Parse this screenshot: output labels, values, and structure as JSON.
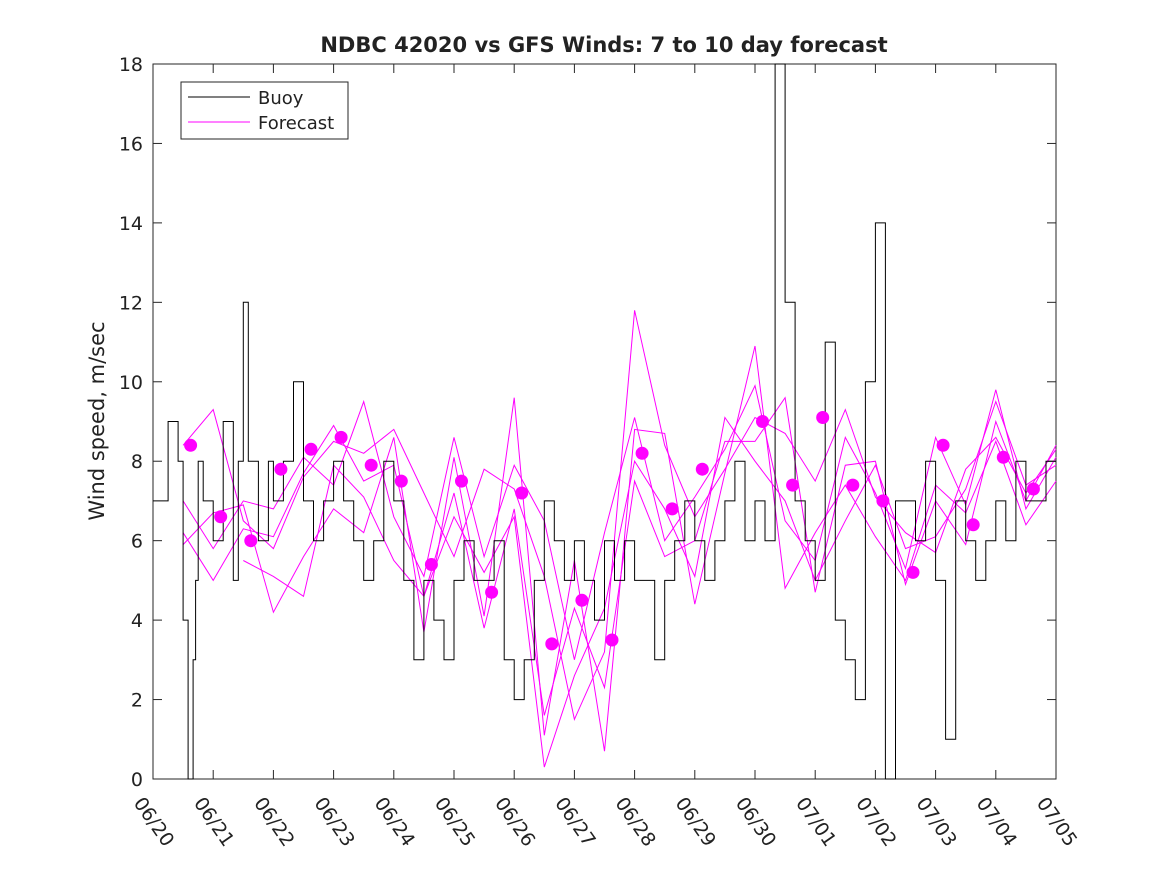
{
  "chart_data": {
    "type": "line",
    "title": "NDBC 42020 vs GFS Winds: 7 to 10 day forecast",
    "xlabel": "",
    "ylabel": "Wind speed, m/sec",
    "x_axis": "date",
    "xlim": [
      "06/20",
      "07/05"
    ],
    "ylim": [
      0,
      18
    ],
    "x_ticks": [
      "06/20",
      "06/21",
      "06/22",
      "06/23",
      "06/24",
      "06/25",
      "06/26",
      "06/27",
      "06/28",
      "06/29",
      "06/30",
      "07/01",
      "07/02",
      "07/03",
      "07/04",
      "07/05"
    ],
    "y_ticks": [
      "0",
      "2",
      "4",
      "6",
      "8",
      "10",
      "12",
      "14",
      "16",
      "18"
    ],
    "grid": false,
    "legend": {
      "position": "top-left",
      "entries": [
        "Buoy",
        "Forecast"
      ]
    },
    "colors": {
      "buoy": "#000000",
      "forecast": "#ff00ff"
    },
    "series": [
      {
        "name": "Buoy",
        "style": "line",
        "x": [
          "06/20 00:00",
          "06/20 06:00",
          "06/20 10:00",
          "06/20 12:00",
          "06/20 14:00",
          "06/20 16:00",
          "06/20 17:00",
          "06/20 18:00",
          "06/20 20:00",
          "06/21 00:00",
          "06/21 04:00",
          "06/21 08:00",
          "06/21 10:00",
          "06/21 12:00",
          "06/21 14:00",
          "06/21 18:00",
          "06/21 22:00",
          "06/22 00:00",
          "06/22 04:00",
          "06/22 08:00",
          "06/22 12:00",
          "06/22 16:00",
          "06/22 20:00",
          "06/23 00:00",
          "06/23 04:00",
          "06/23 08:00",
          "06/23 12:00",
          "06/23 16:00",
          "06/23 20:00",
          "06/24 00:00",
          "06/24 04:00",
          "06/24 08:00",
          "06/24 12:00",
          "06/24 16:00",
          "06/24 20:00",
          "06/25 00:00",
          "06/25 04:00",
          "06/25 08:00",
          "06/25 12:00",
          "06/25 16:00",
          "06/25 20:00",
          "06/26 00:00",
          "06/26 04:00",
          "06/26 08:00",
          "06/26 12:00",
          "06/26 16:00",
          "06/26 20:00",
          "06/27 00:00",
          "06/27 04:00",
          "06/27 08:00",
          "06/27 12:00",
          "06/27 16:00",
          "06/27 20:00",
          "06/28 00:00",
          "06/28 04:00",
          "06/28 08:00",
          "06/28 12:00",
          "06/28 16:00",
          "06/28 20:00",
          "06/29 00:00",
          "06/29 04:00",
          "06/29 08:00",
          "06/29 12:00",
          "06/29 16:00",
          "06/29 20:00",
          "06/30 00:00",
          "06/30 04:00",
          "06/30 08:00",
          "06/30 12:00",
          "06/30 16:00",
          "06/30 20:00",
          "07/01 00:00",
          "07/01 04:00",
          "07/01 08:00",
          "07/01 12:00",
          "07/01 16:00",
          "07/01 20:00",
          "07/02 00:00",
          "07/02 04:00",
          "07/02 08:00",
          "07/02 12:00",
          "07/02 16:00",
          "07/02 20:00",
          "07/03 00:00",
          "07/03 04:00",
          "07/03 08:00",
          "07/03 12:00",
          "07/03 16:00",
          "07/03 20:00",
          "07/04 00:00",
          "07/04 04:00",
          "07/04 08:00",
          "07/04 12:00",
          "07/04 16:00",
          "07/04 20:00",
          "07/05 00:00"
        ],
        "y": [
          7,
          9,
          8,
          4,
          0,
          3,
          5,
          8,
          7,
          6,
          9,
          5,
          8,
          12,
          8,
          6,
          8,
          7,
          8,
          10,
          7,
          6,
          7,
          8,
          7,
          6,
          5,
          6,
          8,
          7,
          5,
          3,
          5,
          4,
          3,
          5,
          6,
          5,
          5,
          6,
          3,
          2,
          3,
          5,
          7,
          6,
          5,
          6,
          5,
          4,
          6,
          5,
          6,
          5,
          5,
          3,
          5,
          6,
          7,
          6,
          5,
          6,
          7,
          8,
          6,
          7,
          6,
          18,
          12,
          7,
          6,
          5,
          11,
          4,
          3,
          2,
          10,
          14,
          0,
          7,
          7,
          6,
          8,
          5,
          1,
          7,
          6,
          5,
          6,
          7,
          6,
          8,
          7,
          7,
          8,
          8
        ]
      },
      {
        "name": "Forecast",
        "style": "line",
        "x": [
          "06/20 12:00",
          "06/21 00:00",
          "06/21 12:00",
          "06/22 00:00",
          "06/22 12:00",
          "06/23 00:00",
          "06/23 12:00",
          "06/24 00:00",
          "06/24 12:00",
          "06/25 00:00",
          "06/25 12:00",
          "06/26 00:00",
          "06/26 12:00",
          "06/27 00:00",
          "06/27 12:00",
          "06/28 00:00",
          "06/28 12:00",
          "06/29 00:00",
          "06/29 12:00",
          "06/30 00:00",
          "06/30 12:00",
          "07/01 00:00",
          "07/01 12:00",
          "07/02 00:00",
          "07/02 12:00",
          "07/03 00:00",
          "07/03 12:00",
          "07/04 00:00",
          "07/04 12:00",
          "07/05 00:00"
        ],
        "runs": [
          [
            8.4,
            9.3,
            6.5,
            5.8,
            7.6,
            8.5,
            8.2,
            8.8,
            7.2,
            5.6,
            7.8,
            7.3,
            5.1,
            1.5,
            3.2,
            11.8,
            8.4,
            6.6,
            7.8,
            9.1,
            8.7,
            7.5,
            9.3,
            7.1,
            6.2,
            5.7,
            7.8,
            8.6,
            7.2,
            8.3
          ],
          [
            7.0,
            5.8,
            7.0,
            6.8,
            8.1,
            7.4,
            9.5,
            6.6,
            5.1,
            8.6,
            5.6,
            7.9,
            6.5,
            3.0,
            6.2,
            9.1,
            6.0,
            7.1,
            8.3,
            9.9,
            6.5,
            5.5,
            8.6,
            7.2,
            5.3,
            8.6,
            6.9,
            9.8,
            6.8,
            8.1
          ],
          [
            6.2,
            5.0,
            6.3,
            6.1,
            7.7,
            8.9,
            7.5,
            7.9,
            4.6,
            6.6,
            5.2,
            6.6,
            0.3,
            2.6,
            4.3,
            8.0,
            6.8,
            5.1,
            9.1,
            8.0,
            7.0,
            5.0,
            6.5,
            7.9,
            5.8,
            6.1,
            7.3,
            9.5,
            7.4,
            7.9
          ],
          [
            5.9,
            6.7,
            6.9,
            4.2,
            5.6,
            6.8,
            6.2,
            8.6,
            3.7,
            8.1,
            4.1,
            9.6,
            1.1,
            5.5,
            0.7,
            8.8,
            8.7,
            4.4,
            7.7,
            10.9,
            4.8,
            6.2,
            7.4,
            6.1,
            5.0,
            7.4,
            6.7,
            8.5,
            6.4,
            7.5
          ],
          [
            null,
            null,
            5.5,
            5.1,
            4.6,
            7.9,
            7.1,
            5.5,
            4.6,
            7.2,
            3.8,
            6.8,
            1.6,
            4.3,
            2.3,
            7.5,
            5.6,
            6.0,
            8.5,
            8.5,
            9.6,
            4.7,
            7.9,
            8.0,
            4.9,
            7.0,
            5.9,
            9.0,
            7.0,
            8.4
          ]
        ]
      },
      {
        "name": "",
        "style": "markers",
        "x": [
          "06/20 15:00",
          "06/21 03:00",
          "06/21 15:00",
          "06/22 03:00",
          "06/22 15:00",
          "06/23 03:00",
          "06/23 15:00",
          "06/24 03:00",
          "06/24 15:00",
          "06/25 03:00",
          "06/25 15:00",
          "06/26 03:00",
          "06/26 15:00",
          "06/27 03:00",
          "06/27 15:00",
          "06/28 03:00",
          "06/28 15:00",
          "06/29 03:00",
          "06/30 03:00",
          "06/30 15:00",
          "07/01 03:00",
          "07/01 15:00",
          "07/02 03:00",
          "07/02 15:00",
          "07/03 03:00",
          "07/03 15:00",
          "07/04 03:00",
          "07/04 15:00"
        ],
        "y": [
          8.4,
          6.6,
          6.0,
          7.8,
          8.3,
          8.6,
          7.9,
          7.5,
          5.4,
          7.5,
          4.7,
          7.2,
          3.4,
          4.5,
          3.5,
          8.2,
          6.8,
          7.8,
          9.0,
          7.4,
          9.1,
          7.4,
          7.0,
          5.2,
          8.4,
          6.4,
          8.1,
          7.3
        ]
      }
    ]
  }
}
